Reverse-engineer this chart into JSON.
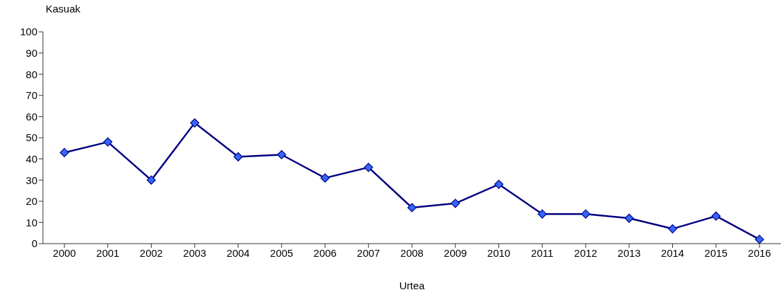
{
  "chart_data": {
    "type": "line",
    "xlabel": "Urtea",
    "ylabel": "Kasuak",
    "categories": [
      "2000",
      "2001",
      "2002",
      "2003",
      "2004",
      "2005",
      "2006",
      "2007",
      "2008",
      "2009",
      "2010",
      "2011",
      "2012",
      "2013",
      "2014",
      "2015",
      "2016"
    ],
    "series": [
      {
        "color": "#000080",
        "values": [
          43,
          48,
          30,
          57,
          41,
          42,
          31,
          36,
          17,
          19,
          28,
          14,
          14,
          12,
          7,
          13,
          2
        ]
      }
    ],
    "ylim": [
      0,
      100
    ],
    "yticks": [
      0,
      10,
      20,
      30,
      40,
      50,
      60,
      70,
      80,
      90,
      100
    ],
    "grid": false,
    "legend": false,
    "marker": "diamond",
    "line_style": "solid"
  }
}
